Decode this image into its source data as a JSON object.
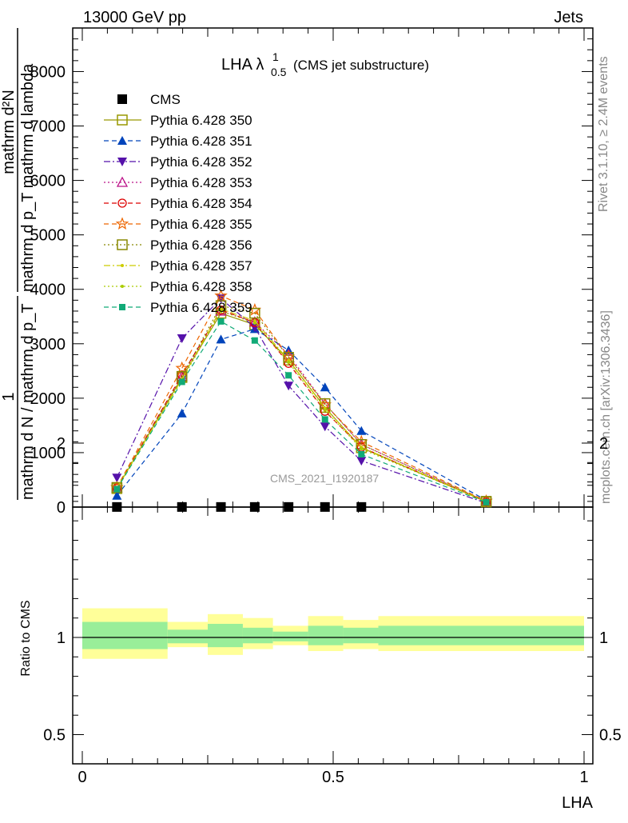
{
  "header": {
    "left": "13000 GeV pp",
    "right": "Jets"
  },
  "side": {
    "rivet": "Rivet 3.1.10, ≥ 2.4M events",
    "mcplots": "mcplots.cern.ch [arXiv:1306.3436]"
  },
  "watermark": "CMS_2021_I1920187",
  "chart_data": {
    "type": "line",
    "title": {
      "main": "LHA λ",
      "sup": "1",
      "sub": "0.5",
      "tail": "(CMS jet substructure)"
    },
    "xlabel": "LHA",
    "ylabel_main": {
      "num": "mathrm d²N",
      "den": "mathrm d p_T mathrm d lambda",
      "lead_num": "1",
      "lead_den": "mathrm d N / mathrm d p_T"
    },
    "ylabel_ratio": "Ratio to CMS",
    "xlim": [
      0,
      1
    ],
    "ylim": [
      0,
      8800
    ],
    "yticks": [
      0,
      1000,
      2000,
      3000,
      4000,
      5000,
      6000,
      7000,
      8000
    ],
    "ytick_labels": [
      "0",
      "1000",
      "2000",
      "3000",
      "4000",
      "5000",
      "6000",
      "7000",
      "8000"
    ],
    "xticks": [
      0,
      0.5,
      1
    ],
    "xtick_labels": [
      "0",
      "0.5",
      "1"
    ],
    "ratio_ylim": [
      0.4,
      2.4
    ],
    "ratio_yticks": [
      0.5,
      1,
      2
    ],
    "ratio_ytick_labels": [
      "0.5",
      "1",
      "2"
    ],
    "x": [
      0.085,
      0.21,
      0.285,
      0.35,
      0.415,
      0.485,
      0.555,
      0.795
    ],
    "bin_edges": [
      0,
      0.17,
      0.25,
      0.32,
      0.38,
      0.45,
      0.52,
      0.59,
      1.0
    ],
    "ratio_band_outer": [
      [
        0.89,
        1.15
      ],
      [
        0.95,
        1.08
      ],
      [
        0.91,
        1.12
      ],
      [
        0.94,
        1.1
      ],
      [
        0.96,
        1.06
      ],
      [
        0.93,
        1.11
      ],
      [
        0.94,
        1.09
      ],
      [
        0.93,
        1.11
      ]
    ],
    "ratio_band_inner": [
      [
        0.94,
        1.08
      ],
      [
        0.97,
        1.04
      ],
      [
        0.95,
        1.07
      ],
      [
        0.97,
        1.05
      ],
      [
        0.98,
        1.03
      ],
      [
        0.96,
        1.06
      ],
      [
        0.97,
        1.05
      ],
      [
        0.96,
        1.06
      ]
    ],
    "series": [
      {
        "name": "CMS",
        "values": [
          2,
          2,
          2,
          2,
          2,
          2,
          2,
          null
        ],
        "color": "#000000",
        "marker": "square-filled",
        "dash": "none"
      },
      {
        "name": "Pythia 6.428 350",
        "values": [
          340,
          2380,
          3560,
          3350,
          2700,
          1830,
          1090,
          95
        ],
        "color": "#999900",
        "marker": "square-open",
        "dash": "solid"
      },
      {
        "name": "Pythia 6.428 351",
        "values": [
          210,
          1720,
          3080,
          3270,
          2880,
          2200,
          1400,
          125
        ],
        "color": "#0044bb",
        "marker": "triangle-up-filled",
        "dash": "dash"
      },
      {
        "name": "Pythia 6.428 352",
        "values": [
          540,
          3100,
          3830,
          3300,
          2230,
          1480,
          850,
          75
        ],
        "color": "#5511aa",
        "marker": "triangle-down-filled",
        "dash": "dashdot"
      },
      {
        "name": "Pythia 6.428 353",
        "values": [
          350,
          2400,
          3600,
          3400,
          2800,
          1900,
          1150,
          100
        ],
        "color": "#bb1188",
        "marker": "triangle-up-open",
        "dash": "dot"
      },
      {
        "name": "Pythia 6.428 354",
        "values": [
          350,
          2430,
          3620,
          3390,
          2640,
          1760,
          1100,
          98
        ],
        "color": "#dd0000",
        "marker": "circle-open",
        "dash": "dash"
      },
      {
        "name": "Pythia 6.428 355",
        "values": [
          360,
          2550,
          3880,
          3620,
          2760,
          1880,
          1200,
          110
        ],
        "color": "#ee6600",
        "marker": "star-open",
        "dash": "dash"
      },
      {
        "name": "Pythia 6.428 356",
        "values": [
          360,
          2400,
          3700,
          3560,
          2750,
          1900,
          1150,
          105
        ],
        "color": "#888800",
        "marker": "square-open",
        "dash": "dot"
      },
      {
        "name": "Pythia 6.428 357",
        "values": [
          350,
          2350,
          3640,
          3420,
          2700,
          1820,
          1100,
          100
        ],
        "color": "#cccc00",
        "marker": "dot",
        "dash": "dashdot"
      },
      {
        "name": "Pythia 6.428 358",
        "values": [
          345,
          2330,
          3600,
          3380,
          2660,
          1780,
          1070,
          98
        ],
        "color": "#aacc00",
        "marker": "dot",
        "dash": "dot"
      },
      {
        "name": "Pythia 6.428 359",
        "values": [
          330,
          2300,
          3410,
          3060,
          2420,
          1610,
          970,
          90
        ],
        "color": "#11aa77",
        "marker": "square-small-filled",
        "dash": "dash"
      }
    ]
  }
}
